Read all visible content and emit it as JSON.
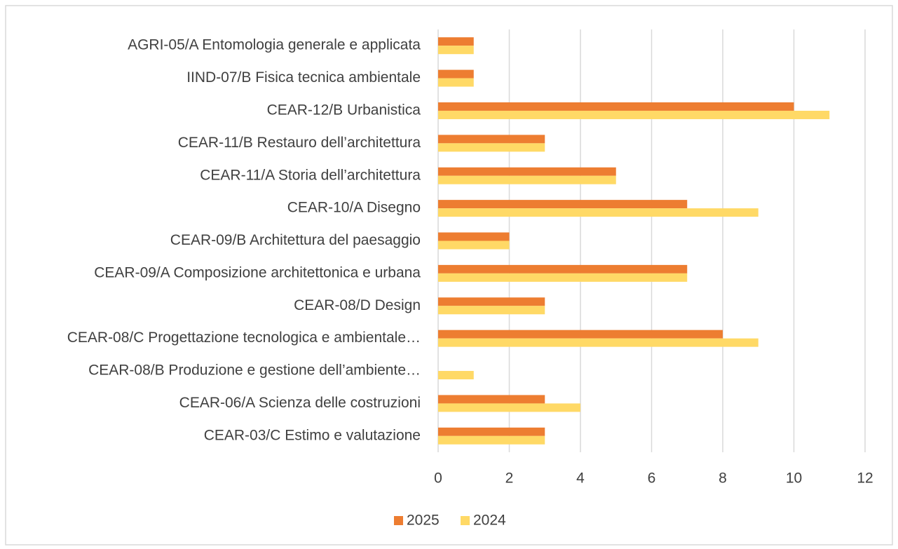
{
  "chart_data": {
    "type": "bar",
    "orientation": "horizontal",
    "categories": [
      "AGRI-05/A Entomologia generale e applicata",
      "IIND-07/B Fisica tecnica ambientale",
      "CEAR-12/B Urbanistica",
      "CEAR-11/B Restauro dell’architettura",
      "CEAR-11/A Storia dell’architettura",
      "CEAR-10/A Disegno",
      "CEAR-09/B Architettura del paesaggio",
      "CEAR-09/A Composizione architettonica e urbana",
      "CEAR-08/D Design",
      "CEAR-08/C Progettazione tecnologica e ambientale…",
      "CEAR-08/B Produzione e gestione dell’ambiente…",
      "CEAR-06/A Scienza delle costruzioni",
      "CEAR-03/C Estimo e valutazione"
    ],
    "series": [
      {
        "name": "2025",
        "color": "#ed7d31",
        "values": [
          1,
          1,
          10,
          3,
          5,
          7,
          2,
          7,
          3,
          8,
          0,
          3,
          3
        ]
      },
      {
        "name": "2024",
        "color": "#ffd966",
        "values": [
          1,
          1,
          11,
          3,
          5,
          9,
          2,
          7,
          3,
          9,
          1,
          4,
          3
        ]
      }
    ],
    "xlim": [
      0,
      12
    ],
    "xticks": [
      0,
      2,
      4,
      6,
      8,
      10,
      12
    ],
    "grid": true,
    "legend": "bottom"
  }
}
